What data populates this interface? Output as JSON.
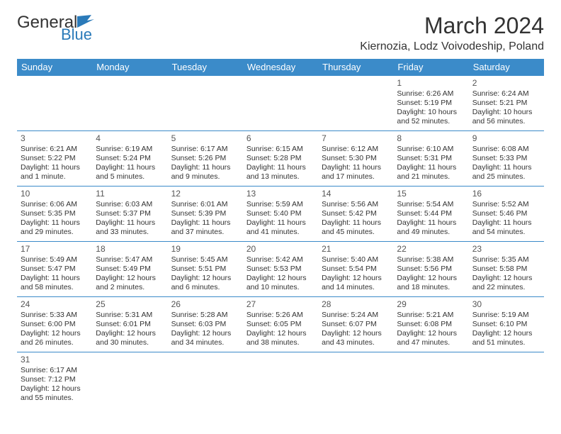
{
  "logo": {
    "text1": "General",
    "text2": "Blue"
  },
  "title": "March 2024",
  "location": "Kiernozia, Lodz Voivodeship, Poland",
  "colors": {
    "header_bg": "#3b8bc9",
    "header_text": "#ffffff",
    "border": "#3b8bc9",
    "text": "#333333",
    "logo_blue": "#2a7ab9"
  },
  "day_headers": [
    "Sunday",
    "Monday",
    "Tuesday",
    "Wednesday",
    "Thursday",
    "Friday",
    "Saturday"
  ],
  "weeks": [
    [
      null,
      null,
      null,
      null,
      null,
      {
        "n": "1",
        "sr": "Sunrise: 6:26 AM",
        "ss": "Sunset: 5:19 PM",
        "d1": "Daylight: 10 hours",
        "d2": "and 52 minutes."
      },
      {
        "n": "2",
        "sr": "Sunrise: 6:24 AM",
        "ss": "Sunset: 5:21 PM",
        "d1": "Daylight: 10 hours",
        "d2": "and 56 minutes."
      }
    ],
    [
      {
        "n": "3",
        "sr": "Sunrise: 6:21 AM",
        "ss": "Sunset: 5:22 PM",
        "d1": "Daylight: 11 hours",
        "d2": "and 1 minute."
      },
      {
        "n": "4",
        "sr": "Sunrise: 6:19 AM",
        "ss": "Sunset: 5:24 PM",
        "d1": "Daylight: 11 hours",
        "d2": "and 5 minutes."
      },
      {
        "n": "5",
        "sr": "Sunrise: 6:17 AM",
        "ss": "Sunset: 5:26 PM",
        "d1": "Daylight: 11 hours",
        "d2": "and 9 minutes."
      },
      {
        "n": "6",
        "sr": "Sunrise: 6:15 AM",
        "ss": "Sunset: 5:28 PM",
        "d1": "Daylight: 11 hours",
        "d2": "and 13 minutes."
      },
      {
        "n": "7",
        "sr": "Sunrise: 6:12 AM",
        "ss": "Sunset: 5:30 PM",
        "d1": "Daylight: 11 hours",
        "d2": "and 17 minutes."
      },
      {
        "n": "8",
        "sr": "Sunrise: 6:10 AM",
        "ss": "Sunset: 5:31 PM",
        "d1": "Daylight: 11 hours",
        "d2": "and 21 minutes."
      },
      {
        "n": "9",
        "sr": "Sunrise: 6:08 AM",
        "ss": "Sunset: 5:33 PM",
        "d1": "Daylight: 11 hours",
        "d2": "and 25 minutes."
      }
    ],
    [
      {
        "n": "10",
        "sr": "Sunrise: 6:06 AM",
        "ss": "Sunset: 5:35 PM",
        "d1": "Daylight: 11 hours",
        "d2": "and 29 minutes."
      },
      {
        "n": "11",
        "sr": "Sunrise: 6:03 AM",
        "ss": "Sunset: 5:37 PM",
        "d1": "Daylight: 11 hours",
        "d2": "and 33 minutes."
      },
      {
        "n": "12",
        "sr": "Sunrise: 6:01 AM",
        "ss": "Sunset: 5:39 PM",
        "d1": "Daylight: 11 hours",
        "d2": "and 37 minutes."
      },
      {
        "n": "13",
        "sr": "Sunrise: 5:59 AM",
        "ss": "Sunset: 5:40 PM",
        "d1": "Daylight: 11 hours",
        "d2": "and 41 minutes."
      },
      {
        "n": "14",
        "sr": "Sunrise: 5:56 AM",
        "ss": "Sunset: 5:42 PM",
        "d1": "Daylight: 11 hours",
        "d2": "and 45 minutes."
      },
      {
        "n": "15",
        "sr": "Sunrise: 5:54 AM",
        "ss": "Sunset: 5:44 PM",
        "d1": "Daylight: 11 hours",
        "d2": "and 49 minutes."
      },
      {
        "n": "16",
        "sr": "Sunrise: 5:52 AM",
        "ss": "Sunset: 5:46 PM",
        "d1": "Daylight: 11 hours",
        "d2": "and 54 minutes."
      }
    ],
    [
      {
        "n": "17",
        "sr": "Sunrise: 5:49 AM",
        "ss": "Sunset: 5:47 PM",
        "d1": "Daylight: 11 hours",
        "d2": "and 58 minutes."
      },
      {
        "n": "18",
        "sr": "Sunrise: 5:47 AM",
        "ss": "Sunset: 5:49 PM",
        "d1": "Daylight: 12 hours",
        "d2": "and 2 minutes."
      },
      {
        "n": "19",
        "sr": "Sunrise: 5:45 AM",
        "ss": "Sunset: 5:51 PM",
        "d1": "Daylight: 12 hours",
        "d2": "and 6 minutes."
      },
      {
        "n": "20",
        "sr": "Sunrise: 5:42 AM",
        "ss": "Sunset: 5:53 PM",
        "d1": "Daylight: 12 hours",
        "d2": "and 10 minutes."
      },
      {
        "n": "21",
        "sr": "Sunrise: 5:40 AM",
        "ss": "Sunset: 5:54 PM",
        "d1": "Daylight: 12 hours",
        "d2": "and 14 minutes."
      },
      {
        "n": "22",
        "sr": "Sunrise: 5:38 AM",
        "ss": "Sunset: 5:56 PM",
        "d1": "Daylight: 12 hours",
        "d2": "and 18 minutes."
      },
      {
        "n": "23",
        "sr": "Sunrise: 5:35 AM",
        "ss": "Sunset: 5:58 PM",
        "d1": "Daylight: 12 hours",
        "d2": "and 22 minutes."
      }
    ],
    [
      {
        "n": "24",
        "sr": "Sunrise: 5:33 AM",
        "ss": "Sunset: 6:00 PM",
        "d1": "Daylight: 12 hours",
        "d2": "and 26 minutes."
      },
      {
        "n": "25",
        "sr": "Sunrise: 5:31 AM",
        "ss": "Sunset: 6:01 PM",
        "d1": "Daylight: 12 hours",
        "d2": "and 30 minutes."
      },
      {
        "n": "26",
        "sr": "Sunrise: 5:28 AM",
        "ss": "Sunset: 6:03 PM",
        "d1": "Daylight: 12 hours",
        "d2": "and 34 minutes."
      },
      {
        "n": "27",
        "sr": "Sunrise: 5:26 AM",
        "ss": "Sunset: 6:05 PM",
        "d1": "Daylight: 12 hours",
        "d2": "and 38 minutes."
      },
      {
        "n": "28",
        "sr": "Sunrise: 5:24 AM",
        "ss": "Sunset: 6:07 PM",
        "d1": "Daylight: 12 hours",
        "d2": "and 43 minutes."
      },
      {
        "n": "29",
        "sr": "Sunrise: 5:21 AM",
        "ss": "Sunset: 6:08 PM",
        "d1": "Daylight: 12 hours",
        "d2": "and 47 minutes."
      },
      {
        "n": "30",
        "sr": "Sunrise: 5:19 AM",
        "ss": "Sunset: 6:10 PM",
        "d1": "Daylight: 12 hours",
        "d2": "and 51 minutes."
      }
    ],
    [
      {
        "n": "31",
        "sr": "Sunrise: 6:17 AM",
        "ss": "Sunset: 7:12 PM",
        "d1": "Daylight: 12 hours",
        "d2": "and 55 minutes."
      },
      null,
      null,
      null,
      null,
      null,
      null
    ]
  ]
}
